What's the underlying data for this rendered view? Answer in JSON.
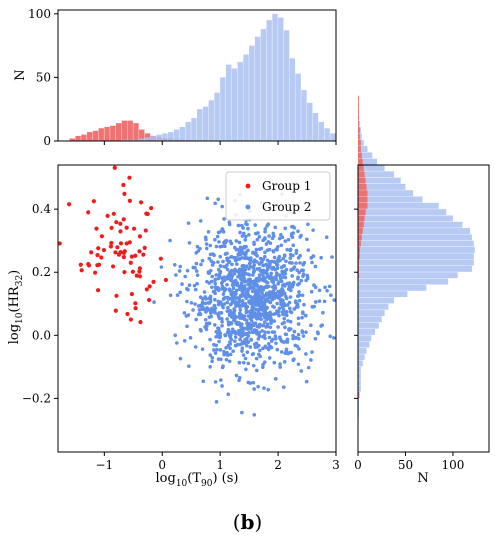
{
  "caption": {
    "open": "(",
    "letter": "b",
    "close": ")"
  },
  "colors": {
    "group1": "#ee1c1c",
    "group2": "#5f8fe6",
    "hist1": "#ef6b6b",
    "hist2": "#a9c1f2"
  },
  "chart_data": [
    {
      "type": "scatter",
      "xlabel": "log10(T90) (s)",
      "ylabel": "log10(HR32)",
      "xlim": [
        -1.8,
        3.0
      ],
      "ylim": [
        -0.37,
        0.54
      ],
      "xticks": [
        -1,
        0,
        1,
        2,
        3
      ],
      "yticks": [
        -0.2,
        0.0,
        0.2,
        0.4
      ],
      "xtick_labels": [
        "−1",
        "0",
        "1",
        "2",
        "3"
      ],
      "ytick_labels": [
        "−0.2",
        "0.0",
        "0.2",
        "0.4"
      ],
      "legend": {
        "position": "top-right",
        "entries": [
          "Group 1",
          "Group 2"
        ]
      },
      "series": [
        {
          "name": "Group 1",
          "color": "#ee1c1c",
          "n": 80,
          "x_mean": -0.7,
          "x_sd": 0.42,
          "y_mean": 0.25,
          "y_sd": 0.1
        },
        {
          "name": "Group 2",
          "color": "#5f8fe6",
          "n": 1250,
          "x_mean": 1.55,
          "x_sd": 0.52,
          "y_mean": 0.12,
          "y_sd": 0.11
        }
      ]
    },
    {
      "type": "bar",
      "title": "",
      "ylabel": "N",
      "xlim": [
        -1.8,
        3.0
      ],
      "ylim": [
        0,
        103
      ],
      "yticks": [
        0,
        50,
        100
      ],
      "bin_start": -1.6,
      "bin_width": 0.1,
      "series": [
        {
          "name": "Group 1",
          "color": "#ef6b6b",
          "values": [
            2,
            4,
            5,
            7,
            8,
            10,
            11,
            12,
            14,
            16,
            16,
            14,
            9,
            6,
            4,
            3,
            2,
            2,
            1,
            1,
            1,
            0,
            0,
            0,
            0,
            0,
            0,
            0,
            0,
            0,
            0,
            0,
            0,
            0,
            0,
            0,
            0,
            0,
            0,
            0,
            0,
            0,
            0,
            0,
            0,
            0
          ]
        },
        {
          "name": "Group 2",
          "color": "#a9c1f2",
          "values": [
            0,
            0,
            0,
            0,
            0,
            0,
            0,
            0,
            0,
            1,
            1,
            1,
            2,
            3,
            4,
            5,
            6,
            7,
            9,
            11,
            15,
            18,
            25,
            27,
            32,
            38,
            50,
            60,
            57,
            62,
            68,
            75,
            82,
            88,
            95,
            100,
            97,
            87,
            65,
            53,
            40,
            30,
            22,
            15,
            10,
            6
          ]
        }
      ]
    },
    {
      "type": "bar",
      "orientation": "horizontal",
      "xlabel": "N",
      "xlim": [
        0,
        138
      ],
      "ylim": [
        -0.37,
        0.54
      ],
      "xticks": [
        0,
        50,
        100
      ],
      "bin_start": -0.36,
      "bin_width": 0.02,
      "series": [
        {
          "name": "Group 1",
          "color": "#ef6b6b",
          "values": [
            0,
            0,
            0,
            0,
            0,
            0,
            0,
            0,
            1,
            0,
            0,
            0,
            0,
            0,
            0,
            0,
            0,
            0,
            0,
            0,
            0,
            0,
            0,
            0,
            0,
            0,
            0,
            1,
            1,
            1,
            2,
            2,
            3,
            4,
            5,
            6,
            7,
            8,
            10,
            10,
            10,
            9,
            8,
            7,
            6,
            5,
            4,
            3,
            3,
            2,
            2,
            1,
            1,
            1,
            1,
            1
          ]
        },
        {
          "name": "Group 2",
          "color": "#a9c1f2",
          "values": [
            0,
            0,
            0,
            0,
            0,
            1,
            1,
            1,
            2,
            3,
            3,
            3,
            3,
            5,
            7,
            9,
            12,
            14,
            18,
            22,
            25,
            28,
            32,
            38,
            52,
            72,
            95,
            105,
            120,
            122,
            122,
            123,
            122,
            120,
            118,
            110,
            100,
            93,
            85,
            68,
            58,
            50,
            45,
            38,
            28,
            20,
            15,
            10,
            6,
            4,
            3,
            2,
            1,
            1,
            0,
            0
          ]
        }
      ]
    }
  ]
}
